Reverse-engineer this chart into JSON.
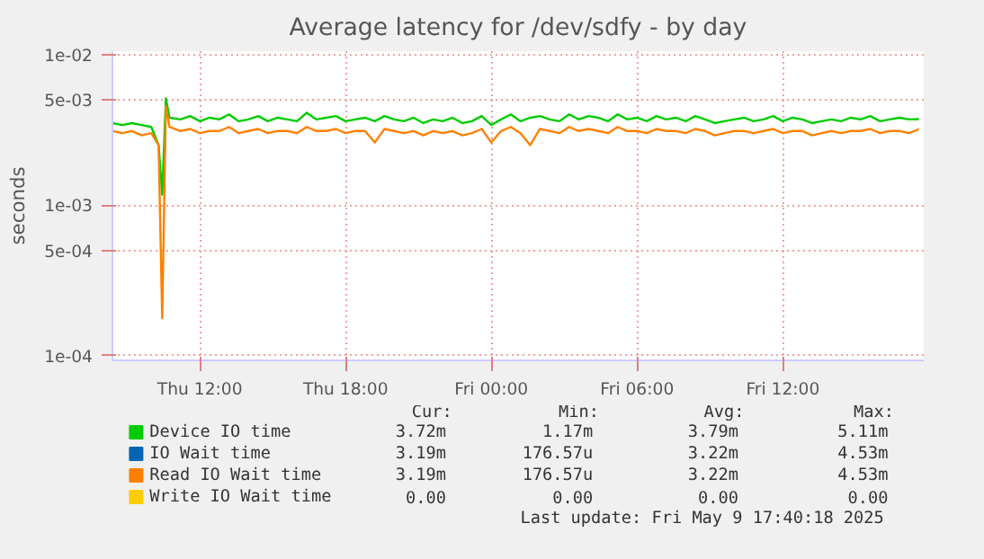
{
  "chart_data": {
    "type": "line",
    "title": "Average latency for /dev/sdfy - by day",
    "ylabel": "seconds",
    "x": [
      "2025-05-08T08:24",
      "2025-05-08T08:48",
      "2025-05-08T09:12",
      "2025-05-08T09:36",
      "2025-05-08T10:00",
      "2025-05-08T10:18",
      "2025-05-08T10:27",
      "2025-05-08T10:36",
      "2025-05-08T10:45",
      "2025-05-08T11:12",
      "2025-05-08T11:36",
      "2025-05-08T12:00",
      "2025-05-08T12:24",
      "2025-05-08T12:48",
      "2025-05-08T13:12",
      "2025-05-08T13:36",
      "2025-05-08T14:00",
      "2025-05-08T14:24",
      "2025-05-08T14:48",
      "2025-05-08T15:12",
      "2025-05-08T15:36",
      "2025-05-08T16:00",
      "2025-05-08T16:24",
      "2025-05-08T16:48",
      "2025-05-08T17:12",
      "2025-05-08T17:36",
      "2025-05-08T18:00",
      "2025-05-08T18:24",
      "2025-05-08T18:48",
      "2025-05-08T19:12",
      "2025-05-08T19:36",
      "2025-05-08T20:00",
      "2025-05-08T20:24",
      "2025-05-08T20:48",
      "2025-05-08T21:12",
      "2025-05-08T21:36",
      "2025-05-08T22:00",
      "2025-05-08T22:24",
      "2025-05-08T22:48",
      "2025-05-08T23:12",
      "2025-05-08T23:36",
      "2025-05-09T00:00",
      "2025-05-09T00:24",
      "2025-05-09T00:48",
      "2025-05-09T01:12",
      "2025-05-09T01:36",
      "2025-05-09T02:00",
      "2025-05-09T02:24",
      "2025-05-09T02:48",
      "2025-05-09T03:12",
      "2025-05-09T03:36",
      "2025-05-09T04:00",
      "2025-05-09T04:24",
      "2025-05-09T04:48",
      "2025-05-09T05:12",
      "2025-05-09T05:36",
      "2025-05-09T06:00",
      "2025-05-09T06:24",
      "2025-05-09T06:48",
      "2025-05-09T07:12",
      "2025-05-09T07:36",
      "2025-05-09T08:00",
      "2025-05-09T08:24",
      "2025-05-09T08:48",
      "2025-05-09T09:12",
      "2025-05-09T09:36",
      "2025-05-09T10:00",
      "2025-05-09T10:24",
      "2025-05-09T10:48",
      "2025-05-09T11:12",
      "2025-05-09T11:36",
      "2025-05-09T12:00",
      "2025-05-09T12:24",
      "2025-05-09T12:48",
      "2025-05-09T13:12",
      "2025-05-09T13:36",
      "2025-05-09T14:00",
      "2025-05-09T14:24",
      "2025-05-09T14:48",
      "2025-05-09T15:12",
      "2025-05-09T15:36",
      "2025-05-09T16:00",
      "2025-05-09T16:24",
      "2025-05-09T16:48",
      "2025-05-09T17:12",
      "2025-05-09T17:36"
    ],
    "series": [
      {
        "name": "Device IO time",
        "color": "#00cc00",
        "values": [
          0.0035,
          0.0034,
          0.0035,
          0.0034,
          0.0033,
          0.0025,
          0.00117,
          0.00511,
          0.0038,
          0.0037,
          0.0039,
          0.0036,
          0.0038,
          0.0037,
          0.004,
          0.0036,
          0.0037,
          0.0039,
          0.0036,
          0.0038,
          0.0037,
          0.0036,
          0.0041,
          0.0037,
          0.0038,
          0.0039,
          0.0036,
          0.0037,
          0.0038,
          0.0036,
          0.0039,
          0.0037,
          0.0036,
          0.0038,
          0.0035,
          0.0037,
          0.0036,
          0.0038,
          0.0035,
          0.0036,
          0.0039,
          0.0034,
          0.0037,
          0.004,
          0.0036,
          0.0038,
          0.0039,
          0.0037,
          0.0036,
          0.004,
          0.0037,
          0.0039,
          0.0038,
          0.0036,
          0.004,
          0.0037,
          0.0038,
          0.0036,
          0.0039,
          0.0037,
          0.0038,
          0.0036,
          0.0039,
          0.0037,
          0.0035,
          0.0036,
          0.0037,
          0.0038,
          0.0036,
          0.0037,
          0.0039,
          0.0036,
          0.0038,
          0.0037,
          0.0035,
          0.0036,
          0.0037,
          0.0036,
          0.0038,
          0.0037,
          0.0039,
          0.0036,
          0.0037,
          0.0038,
          0.0037,
          0.00372
        ]
      },
      {
        "name": "IO Wait time",
        "color": "#0066b3",
        "values": [
          null,
          null,
          null,
          null,
          null,
          null,
          null,
          null,
          null,
          null,
          null,
          null,
          null,
          null,
          null,
          null,
          null,
          null,
          null,
          null,
          null,
          null,
          null,
          null,
          null,
          null,
          null,
          null,
          null,
          null,
          null,
          null,
          null,
          null,
          null,
          null,
          null,
          null,
          null,
          null,
          null,
          null,
          null,
          null,
          null,
          null,
          null,
          null,
          null,
          null,
          null,
          null,
          null,
          null,
          null,
          null,
          null,
          null,
          null,
          null,
          null,
          null,
          null,
          null,
          null,
          null,
          null,
          null,
          null,
          null,
          null,
          null,
          null,
          null,
          null,
          null,
          null,
          null,
          null,
          null,
          null,
          null,
          null,
          null,
          null,
          null
        ]
      },
      {
        "name": "Read IO Wait time",
        "color": "#ff8000",
        "values": [
          0.0031,
          0.003,
          0.0031,
          0.0029,
          0.003,
          0.0025,
          0.000177,
          0.00453,
          0.0033,
          0.0031,
          0.0032,
          0.003,
          0.0031,
          0.0031,
          0.0033,
          0.003,
          0.0031,
          0.0032,
          0.003,
          0.0031,
          0.0031,
          0.003,
          0.0033,
          0.0031,
          0.0031,
          0.0032,
          0.003,
          0.0031,
          0.0031,
          0.0026,
          0.0032,
          0.0031,
          0.003,
          0.0031,
          0.0029,
          0.0031,
          0.003,
          0.0031,
          0.0029,
          0.003,
          0.0032,
          0.0026,
          0.0031,
          0.0033,
          0.003,
          0.0025,
          0.0032,
          0.0031,
          0.003,
          0.0033,
          0.0031,
          0.0032,
          0.0031,
          0.003,
          0.0033,
          0.0031,
          0.0031,
          0.003,
          0.0032,
          0.0031,
          0.0031,
          0.003,
          0.0032,
          0.0031,
          0.0029,
          0.003,
          0.0031,
          0.0031,
          0.003,
          0.0031,
          0.0032,
          0.003,
          0.0031,
          0.0031,
          0.0029,
          0.003,
          0.0031,
          0.003,
          0.0031,
          0.0031,
          0.0032,
          0.003,
          0.0031,
          0.0031,
          0.003,
          0.00319
        ]
      },
      {
        "name": "Write IO Wait time",
        "color": "#ffcc00",
        "values": [
          null,
          null,
          null,
          null,
          null,
          null,
          null,
          null,
          null,
          null,
          null,
          null,
          null,
          null,
          null,
          null,
          null,
          null,
          null,
          null,
          null,
          null,
          null,
          null,
          null,
          null,
          null,
          null,
          null,
          null,
          null,
          null,
          null,
          null,
          null,
          null,
          null,
          null,
          null,
          null,
          null,
          null,
          null,
          null,
          null,
          null,
          null,
          null,
          null,
          null,
          null,
          null,
          null,
          null,
          null,
          null,
          null,
          null,
          null,
          null,
          null,
          null,
          null,
          null,
          null,
          null,
          null,
          null,
          null,
          null,
          null,
          null,
          null,
          null,
          null,
          null,
          null,
          null,
          null,
          null,
          null,
          null,
          null,
          null,
          null,
          null
        ]
      }
    ],
    "xlim": [
      "2025-05-08T08:24",
      "2025-05-09T17:48"
    ],
    "xticks": [
      {
        "value": "2025-05-08T12:00",
        "label": "Thu 12:00"
      },
      {
        "value": "2025-05-08T18:00",
        "label": "Thu 18:00"
      },
      {
        "value": "2025-05-09T00:00",
        "label": "Fri 00:00"
      },
      {
        "value": "2025-05-09T06:00",
        "label": "Fri 06:00"
      },
      {
        "value": "2025-05-09T12:00",
        "label": "Fri 12:00"
      }
    ],
    "ylim": [
      9.3e-05,
      0.0105
    ],
    "yticks": [
      {
        "value": 0.0001,
        "label": "1e-04"
      },
      {
        "value": 0.0005,
        "label": "5e-04"
      },
      {
        "value": 0.001,
        "label": "1e-03"
      },
      {
        "value": 0.005,
        "label": "5e-03"
      },
      {
        "value": 0.01,
        "label": "1e-02"
      }
    ],
    "log": "y",
    "grid": true,
    "legend": "bottom",
    "line_style": "solid",
    "marker": "none",
    "annotations": [
      "Cur:",
      "Min:",
      "Avg:",
      "Max:",
      "3.72m",
      "1.17m",
      "3.79m",
      "5.11m",
      "3.19m",
      "176.57u",
      "3.22m",
      "4.53m",
      "3.19m",
      "176.57u",
      "3.22m",
      "4.53m",
      "0.00",
      "0.00",
      "0.00",
      "0.00",
      "Last update: Fri May  9 17:40:18 2025"
    ]
  }
}
